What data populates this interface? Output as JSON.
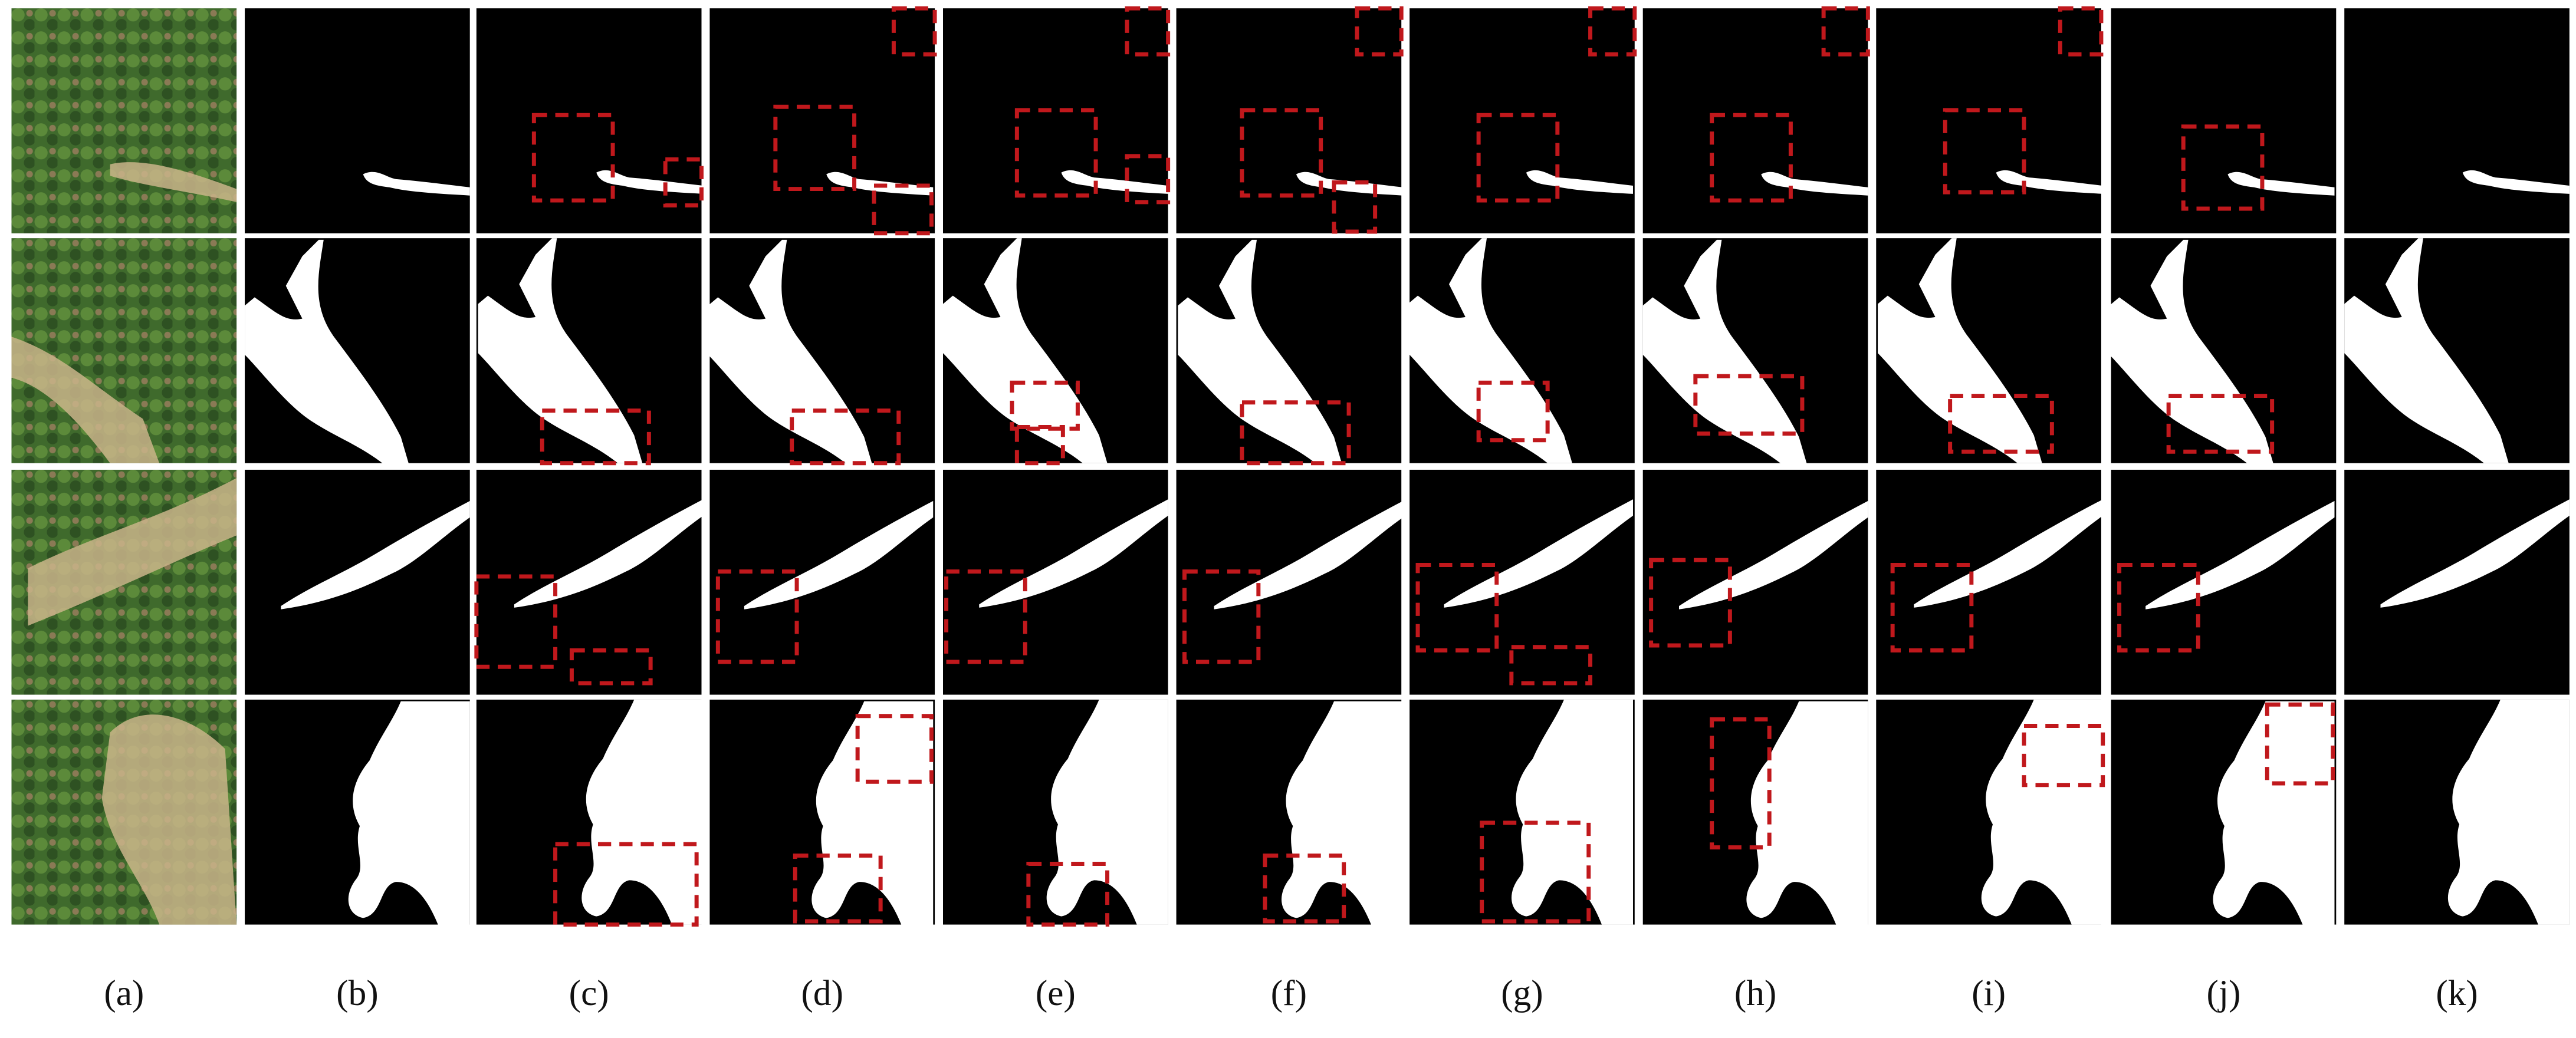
{
  "figure": {
    "labels": [
      "(a)",
      "(b)",
      "(c)",
      "(d)",
      "(e)",
      "(f)",
      "(g)",
      "(h)",
      "(i)",
      "(j)",
      "(k)"
    ]
  }
}
